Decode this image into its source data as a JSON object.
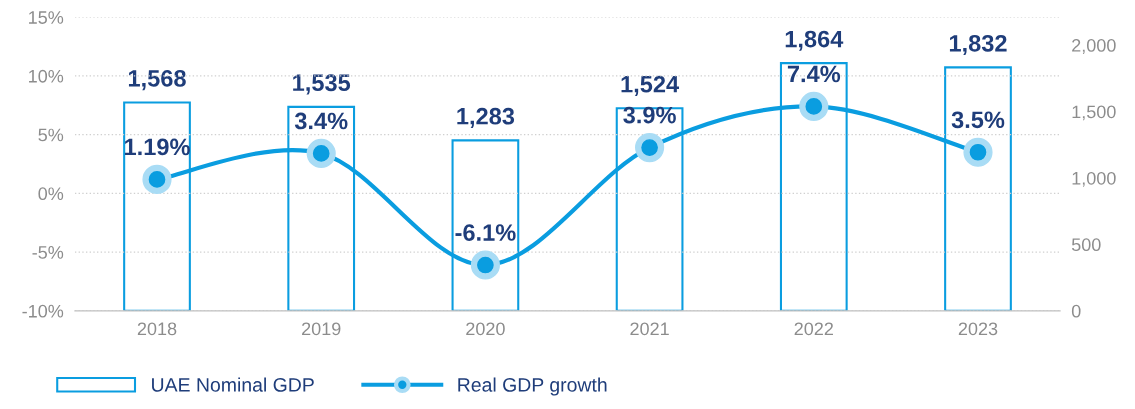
{
  "chart_data": {
    "type": "bar",
    "categories": [
      "2018",
      "2019",
      "2020",
      "2021",
      "2022",
      "2023"
    ],
    "series": [
      {
        "name": "UAE Nominal GDP",
        "axis": "y2",
        "color": "#0a9de0",
        "values": [
          1568,
          1535,
          1283,
          1524,
          1864,
          1832
        ],
        "value_labels": [
          "1,568",
          "1,535",
          "1,283",
          "1,524",
          "1,864",
          "1,832"
        ]
      },
      {
        "name": "Real GDP growth",
        "type": "line",
        "axis": "y",
        "color": "#0a9de0",
        "marker": "circle",
        "line_style": "solid",
        "values": [
          1.19,
          3.4,
          -6.1,
          3.9,
          7.4,
          3.5
        ],
        "value_labels": [
          "1.19%",
          "3.4%",
          "-6.1%",
          "3.9%",
          "7.4%",
          "3.5%"
        ]
      }
    ],
    "ylim": [
      -10,
      15
    ],
    "yticks": [
      {
        "value": -10,
        "label": "-10%"
      },
      {
        "value": -5,
        "label": "-5%"
      },
      {
        "value": 0,
        "label": "0%"
      },
      {
        "value": 5,
        "label": "5%"
      },
      {
        "value": 10,
        "label": "10%"
      },
      {
        "value": 15,
        "label": "15%"
      }
    ],
    "y2lim": [
      0,
      2210
    ],
    "y2ticks": [
      0,
      500,
      {
        "value": 1000,
        "label": "1,000"
      },
      {
        "value": 1500,
        "label": "1,500"
      },
      {
        "value": 2000,
        "label": "2,000"
      }
    ],
    "data_labels": true,
    "grid": "y",
    "legend": "bottom left"
  }
}
